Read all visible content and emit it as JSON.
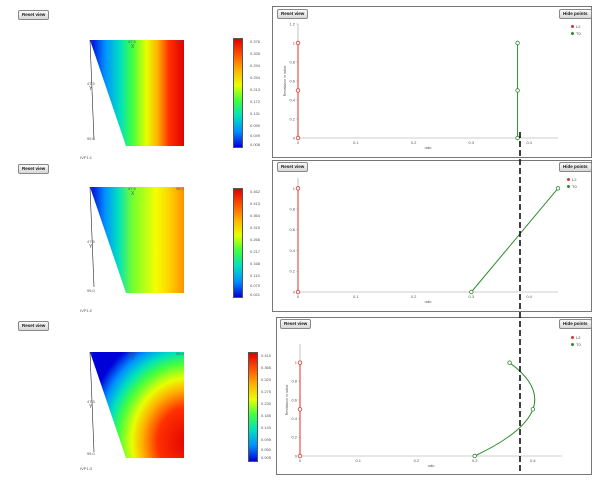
{
  "buttons": {
    "reset_view": "Reset view",
    "hide_points": "Hide points"
  },
  "colors": {
    "series_l2": "#d9342b",
    "series_t0": "#2e8b2e",
    "guide": "#000000"
  },
  "panels": [
    {
      "map": {
        "x_label": "X",
        "top_left_value": "0",
        "top_mid_value": "47.5",
        "top_right_value": "95.0",
        "side_label": "Y",
        "side_mid_value": "47.5",
        "side_bottom_value": "95.0",
        "caption": "IVP1:1"
      },
      "colorbar": {
        "ticks": [
          "0.376",
          "0.335",
          "0.294",
          "0.254",
          "0.213",
          "0.172",
          "0.131",
          "0.090",
          "0.049",
          "0.008"
        ]
      }
    },
    {
      "map": {
        "x_label": "X",
        "top_left_value": "0",
        "top_mid_value": "47.5",
        "top_right_value": "95.0",
        "side_label": "Y",
        "side_mid_value": "47.5",
        "side_bottom_value": "95.0",
        "caption": "IVP1:2"
      },
      "colorbar": {
        "ticks": [
          "0.462",
          "0.413",
          "0.364",
          "0.315",
          "0.266",
          "0.217",
          "0.168",
          "0.119",
          "0.070",
          "0.021"
        ]
      }
    },
    {
      "map": {
        "x_label": "X",
        "top_left_value": "0",
        "top_mid_value": "47.5",
        "top_right_value": "95.0",
        "side_label": "Y",
        "side_mid_value": "47.5",
        "side_bottom_value": "95.0",
        "caption": "IVP1:3"
      },
      "colorbar": {
        "ticks": [
          "0.410",
          "0.365",
          "0.320",
          "0.275",
          "0.230",
          "0.185",
          "0.140",
          "0.095",
          "0.050",
          "0.005"
        ]
      }
    }
  ],
  "chart_data": [
    {
      "type": "line",
      "xlabel": "ratio",
      "ylabel": "Resistance in ratios",
      "xlim": [
        0,
        0.45
      ],
      "ylim": [
        0,
        1.2
      ],
      "xticks": [
        "0",
        "0.1",
        "0.2",
        "0.3",
        "0.4"
      ],
      "yticks": [
        "0",
        "0.2",
        "0.4",
        "0.6",
        "0.8",
        "1",
        "1.2"
      ],
      "legend_placement": "top-right",
      "series": [
        {
          "name": "L2",
          "color": "#d9342b",
          "x": [
            0,
            0,
            0
          ],
          "y": [
            0,
            0.5,
            1
          ],
          "smooth": false
        },
        {
          "name": "T0",
          "color": "#2e8b2e",
          "x": [
            0.38,
            0.38,
            0.38
          ],
          "y": [
            0,
            0.5,
            1
          ],
          "smooth": false
        }
      ]
    },
    {
      "type": "line",
      "xlabel": "ratio",
      "ylabel": "",
      "xlim": [
        0,
        0.45
      ],
      "ylim": [
        0,
        1.1
      ],
      "xticks": [
        "0",
        "0.1",
        "0.2",
        "0.3",
        "0.4"
      ],
      "yticks": [
        "0",
        "0.2",
        "0.4",
        "0.6",
        "0.8",
        "1"
      ],
      "legend_placement": "top-right",
      "series": [
        {
          "name": "L2",
          "color": "#d9342b",
          "x": [
            0,
            0
          ],
          "y": [
            0,
            1
          ],
          "smooth": false
        },
        {
          "name": "T0",
          "color": "#2e8b2e",
          "x": [
            0.3,
            0.45
          ],
          "y": [
            0,
            1
          ],
          "smooth": false
        }
      ]
    },
    {
      "type": "line",
      "xlabel": "ratio",
      "ylabel": "Resistance in ratios",
      "xlim": [
        0,
        0.45
      ],
      "ylim": [
        0,
        1.2
      ],
      "xticks": [
        "0",
        "0.1",
        "0.2",
        "0.3",
        "0.4"
      ],
      "yticks": [
        "0",
        "0.2",
        "0.4",
        "0.6",
        "0.8",
        "1"
      ],
      "legend_placement": "top-right",
      "series": [
        {
          "name": "L2",
          "color": "#d9342b",
          "x": [
            0,
            0,
            0
          ],
          "y": [
            0,
            0.5,
            1
          ],
          "smooth": false
        },
        {
          "name": "T0",
          "color": "#2e8b2e",
          "x": [
            0.3,
            0.4,
            0.36
          ],
          "y": [
            0,
            0.5,
            1
          ],
          "smooth": true
        }
      ]
    }
  ]
}
